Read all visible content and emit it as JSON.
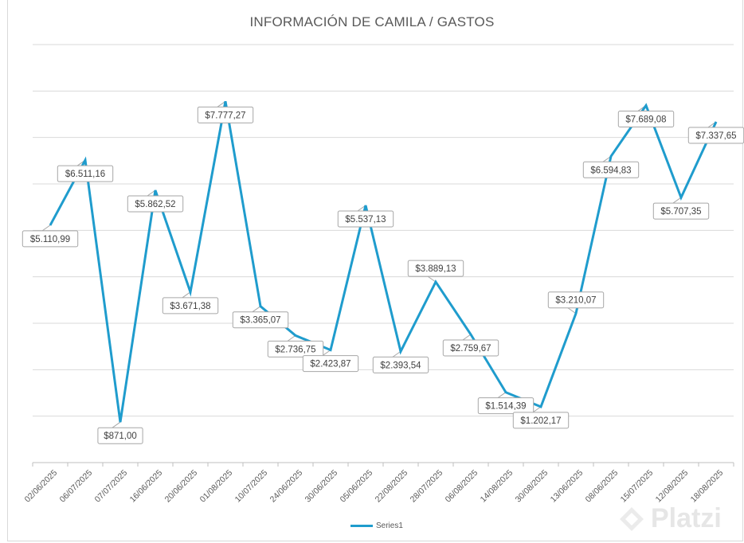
{
  "chart_data": {
    "type": "line",
    "title": "INFORMACIÓN DE CAMILA  / GASTOS",
    "categories": [
      "02/06/2025",
      "06/07/2025",
      "07/07/2025",
      "16/06/2025",
      "20/06/2025",
      "01/08/2025",
      "10/07/2025",
      "24/06/2025",
      "30/06/2025",
      "05/06/2025",
      "22/08/2025",
      "28/07/2025",
      "06/08/2025",
      "14/08/2025",
      "30/08/2025",
      "13/06/2025",
      "08/06/2025",
      "15/07/2025",
      "12/08/2025",
      "18/08/2025"
    ],
    "series": [
      {
        "name": "Series1",
        "color": "#1f9ccd",
        "values": [
          5110.99,
          6511.16,
          871.0,
          5862.52,
          3671.38,
          7777.27,
          3365.07,
          2736.75,
          2423.87,
          5537.13,
          2393.54,
          3889.13,
          2759.67,
          1514.39,
          1202.17,
          3210.07,
          6594.83,
          7689.08,
          5707.35,
          7337.65
        ],
        "labels": [
          "$5.110,99",
          "$6.511,16",
          "$871,00",
          "$5.862,52",
          "$3.671,38",
          "$7.777,27",
          "$3.365,07",
          "$2.736,75",
          "$2.423,87",
          "$5.537,13",
          "$2.393,54",
          "$3.889,13",
          "$2.759,67",
          "$1.514,39",
          "$1.202,17",
          "$3.210,07",
          "$6.594,83",
          "$7.689,08",
          "$5.707,35",
          "$7.337,65"
        ],
        "label_side": [
          "below",
          "below",
          "below",
          "below",
          "below",
          "below",
          "below",
          "below",
          "below",
          "below",
          "below",
          "above",
          "below",
          "below",
          "below",
          "above",
          "below",
          "below",
          "below",
          "below"
        ]
      }
    ],
    "ylim": [
      0,
      9000
    ],
    "y_gridlines": true,
    "y_tick_labels_shown": false,
    "legend": "bottom-center"
  },
  "legend": {
    "label": "Series1"
  },
  "watermark": {
    "text": "Platzi"
  }
}
